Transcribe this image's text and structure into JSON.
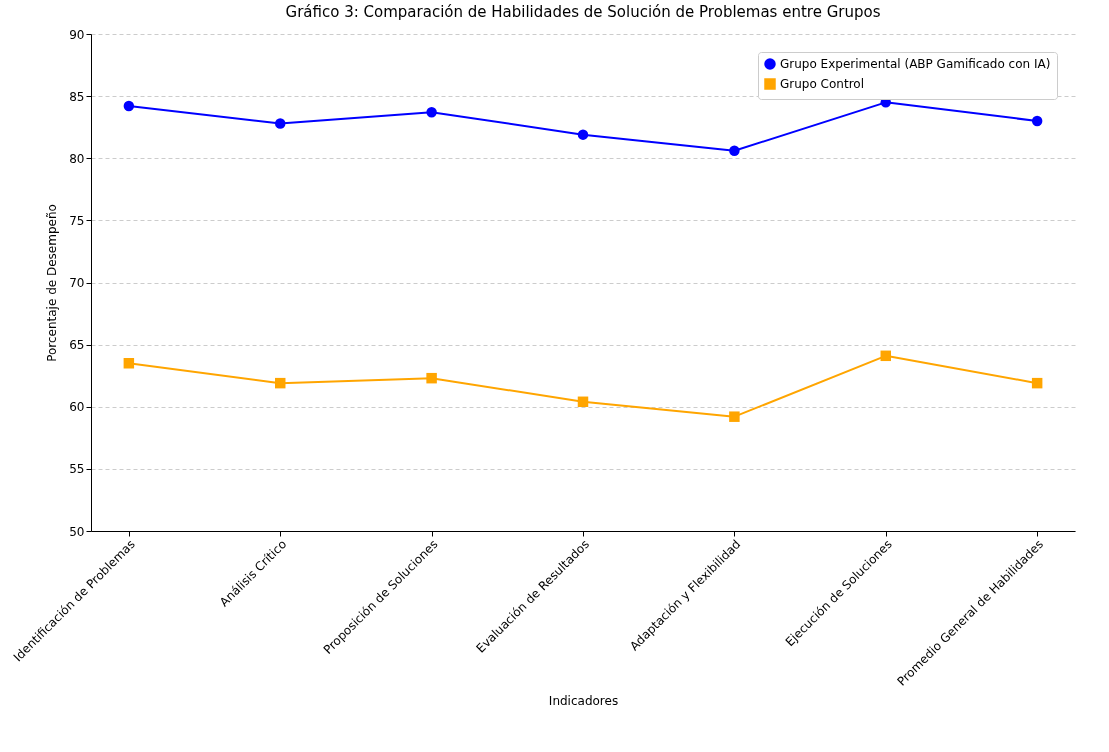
{
  "chart_data": {
    "type": "line",
    "title": "Gráfico 3: Comparación de Habilidades de Solución de Problemas entre Grupos",
    "xlabel": "Indicadores",
    "ylabel": "Porcentaje de Desempeño",
    "categories": [
      "Identificación de Problemas",
      "Análisis Crítico",
      "Proposición de Soluciones",
      "Evaluación de Resultados",
      "Adaptación y Flexibilidad",
      "Ejecución de Soluciones",
      "Promedio General de Habilidades"
    ],
    "series": [
      {
        "name": "Grupo Experimental (ABP Gamificado con IA)",
        "color": "#0000ff",
        "marker": "circle",
        "values": [
          84.2,
          82.8,
          83.7,
          81.9,
          80.6,
          84.5,
          83.0
        ]
      },
      {
        "name": "Grupo Control",
        "color": "#ffa500",
        "marker": "square",
        "values": [
          63.5,
          61.9,
          62.3,
          60.4,
          59.2,
          64.1,
          61.9
        ]
      }
    ],
    "ylim": [
      50,
      90
    ],
    "yticks": [
      50,
      55,
      60,
      65,
      70,
      75,
      80,
      85,
      90
    ],
    "grid": "y",
    "legend": "top right",
    "line_style": "solid"
  }
}
